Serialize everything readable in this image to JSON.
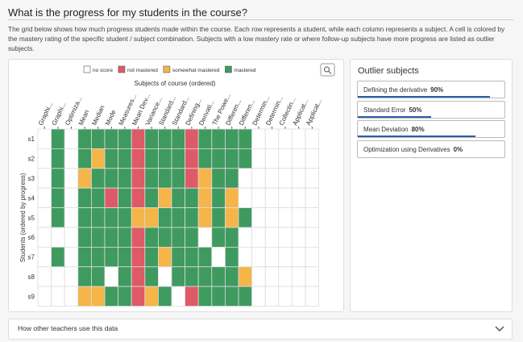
{
  "header": {
    "title": "What is the progress for my students in the course?",
    "description": "The grid below shows how much progress students made within the course. Each row represents a student, while each column represents a subject. A cell is colored by the mastery rating of the specific student / subject combination. Subjects with a low mastery rate or where follow-up subjects have more progress are listed as outlier subjects."
  },
  "grid": {
    "title": "Subjects of course (ordered)",
    "y_label": "Students (ordered by progress)",
    "legend": [
      {
        "name": "no score",
        "color": "#ffffff"
      },
      {
        "name": "not mastered",
        "color": "#de5a66"
      },
      {
        "name": "somewhat mastered",
        "color": "#f5b548"
      },
      {
        "name": "mastered",
        "color": "#3f9a60"
      }
    ],
    "columns": [
      "Graphi...",
      "Graphi...",
      "Optimiza...",
      "Mean",
      "Median",
      "Mode",
      "Measures...",
      "Mean Dev...",
      "Variance...",
      "Standard...",
      "Standard...",
      "Defining...",
      "Derivati...",
      "The Powe...",
      "Differen...",
      "Differen...",
      "Determin...",
      "Determin...",
      "Collectin...",
      "Applicat...",
      "Applicat..."
    ],
    "rows": [
      "s1",
      "s2",
      "s3",
      "s4",
      "s5",
      "s6",
      "s7",
      "s8",
      "s9"
    ],
    "cells": [
      [
        0,
        3,
        0,
        3,
        3,
        3,
        3,
        1,
        3,
        3,
        3,
        1,
        3,
        3,
        3,
        3,
        0,
        0,
        0,
        0,
        0
      ],
      [
        0,
        3,
        0,
        3,
        2,
        3,
        3,
        1,
        3,
        3,
        3,
        1,
        3,
        3,
        3,
        3,
        0,
        0,
        0,
        0,
        0
      ],
      [
        0,
        3,
        0,
        2,
        3,
        3,
        3,
        1,
        3,
        3,
        3,
        1,
        2,
        3,
        3,
        0,
        0,
        0,
        0,
        0,
        0
      ],
      [
        0,
        3,
        0,
        3,
        3,
        1,
        3,
        1,
        3,
        2,
        3,
        3,
        2,
        3,
        2,
        0,
        0,
        0,
        0,
        0,
        0
      ],
      [
        0,
        3,
        0,
        3,
        3,
        3,
        3,
        2,
        2,
        3,
        3,
        3,
        2,
        3,
        2,
        3,
        0,
        0,
        0,
        0,
        0
      ],
      [
        0,
        0,
        0,
        3,
        3,
        3,
        3,
        1,
        3,
        3,
        3,
        3,
        0,
        3,
        3,
        0,
        0,
        0,
        0,
        0,
        0
      ],
      [
        0,
        3,
        0,
        3,
        3,
        3,
        3,
        1,
        3,
        2,
        3,
        3,
        3,
        0,
        3,
        0,
        0,
        0,
        0,
        0,
        0
      ],
      [
        0,
        0,
        0,
        3,
        3,
        0,
        3,
        1,
        3,
        0,
        3,
        3,
        3,
        3,
        3,
        2,
        0,
        0,
        0,
        0,
        0
      ],
      [
        0,
        0,
        0,
        2,
        2,
        3,
        3,
        1,
        2,
        3,
        0,
        1,
        3,
        3,
        3,
        3,
        0,
        0,
        0,
        0,
        0
      ]
    ]
  },
  "outliers": {
    "title": "Outlier subjects",
    "items": [
      {
        "name": "Defining the derivative",
        "value": 90,
        "value_label": "90%"
      },
      {
        "name": "Standard Error",
        "value": 50,
        "value_label": "50%"
      },
      {
        "name": "Mean Deviation",
        "value": 80,
        "value_label": "80%"
      },
      {
        "name": "Optimization using Derivatives",
        "value": 0,
        "value_label": "0%"
      }
    ]
  },
  "footer": {
    "title": "How other teachers use this data"
  }
}
